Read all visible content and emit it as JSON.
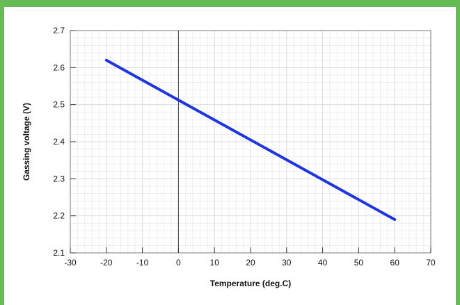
{
  "chart_data": {
    "type": "line",
    "xlabel": "Temperature (deg.C)",
    "ylabel": "Gassing voltage (V)",
    "xlim": [
      -30,
      70
    ],
    "ylim": [
      2.1,
      2.7
    ],
    "x_ticks": [
      -30,
      -20,
      -10,
      0,
      10,
      20,
      30,
      40,
      50,
      60,
      70
    ],
    "y_ticks": [
      2.1,
      2.2,
      2.3,
      2.4,
      2.5,
      2.6,
      2.7
    ],
    "x_tick_labels": [
      "-30",
      "-20",
      "-10",
      "0",
      "10",
      "20",
      "30",
      "40",
      "50",
      "60",
      "70"
    ],
    "y_tick_labels": [
      "2.1",
      "2.2",
      "2.3",
      "2.4",
      "2.5",
      "2.6",
      "2.7"
    ],
    "minor_x_step": 2,
    "minor_y_step": 0.02,
    "grid": true,
    "zero_line": true,
    "series": [
      {
        "x": [
          -20,
          60
        ],
        "y": [
          2.62,
          2.19
        ],
        "color": "#1f35e0"
      }
    ],
    "colors": {
      "frame": "#66bb55",
      "grid": "#dddddd",
      "line": "#1f35e0"
    }
  }
}
